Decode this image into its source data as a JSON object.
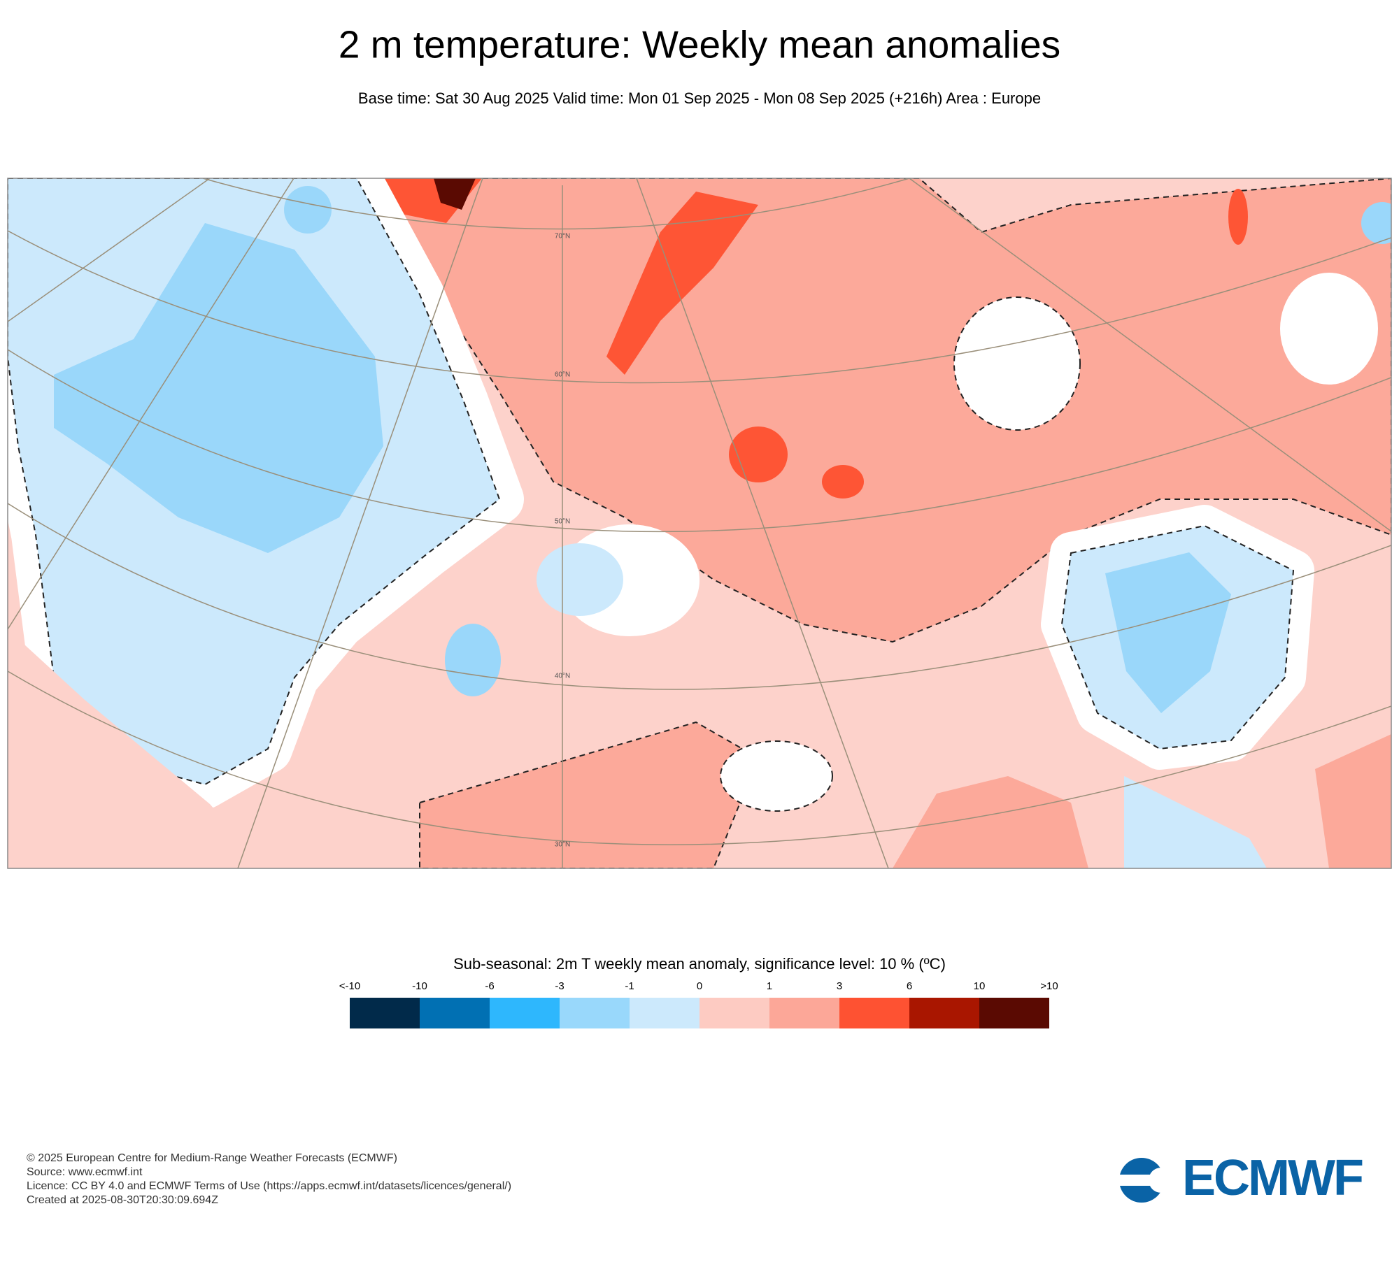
{
  "header": {
    "title": "2 m temperature: Weekly mean anomalies",
    "subtitle": "Base time: Sat 30 Aug 2025 Valid time: Mon 01 Sep 2025 - Mon 08 Sep 2025 (+216h) Area : Europe"
  },
  "map": {
    "latitude_labels": [
      "70°N",
      "60°N",
      "50°N",
      "40°N",
      "30°N"
    ]
  },
  "legend": {
    "title": "Sub-seasonal: 2m T weekly mean anomaly, significance level: 10 % (ºC)",
    "labels": [
      "<-10",
      "-10",
      "-6",
      "-3",
      "-1",
      "0",
      "1",
      "3",
      "6",
      "10",
      ">10"
    ],
    "colors": [
      "#012a4a",
      "#0170b3",
      "#2eb7fd",
      "#99d8fb",
      "#cce9fc",
      "#fdcbc2",
      "#fca798",
      "#fe5232",
      "#a91600",
      "#5a0a02"
    ]
  },
  "footer": {
    "lines": [
      "© 2025 European Centre for Medium-Range Weather Forecasts (ECMWF)",
      "Source: www.ecmwf.int",
      "Licence: CC BY 4.0 and ECMWF Terms of Use (https://apps.ecmwf.int/datasets/licences/general/)",
      "Created at 2025-08-30T20:30:09.694Z"
    ]
  },
  "logo": {
    "text": "ECMWF"
  }
}
